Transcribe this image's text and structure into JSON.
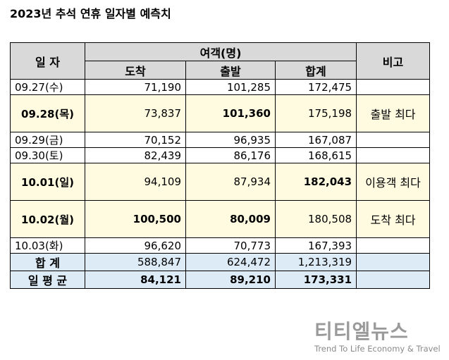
{
  "title": "2023년 추석 연휴 일자별 예측치",
  "headers": {
    "date": "일 자",
    "group": "여객(명)",
    "arrival": "도착",
    "departure": "출발",
    "total": "합계",
    "note": "비고"
  },
  "rows": [
    {
      "date": "09.27(수)",
      "arrival": "71,190",
      "departure": "101,285",
      "total": "172,475",
      "note": ""
    },
    {
      "date": "09.28(목)",
      "arrival": "73,837",
      "departure": "101,360",
      "total": "175,198",
      "note": "출발 최다"
    },
    {
      "date": "09.29(금)",
      "arrival": "70,152",
      "departure": "96,935",
      "total": "167,087",
      "note": ""
    },
    {
      "date": "09.30(토)",
      "arrival": "82,439",
      "departure": "86,176",
      "total": "168,615",
      "note": ""
    },
    {
      "date": "10.01(일)",
      "arrival": "94,109",
      "departure": "87,934",
      "total": "182,043",
      "note": "이용객 최다"
    },
    {
      "date": "10.02(월)",
      "arrival": "100,500",
      "departure": "80,009",
      "total": "180,508",
      "note": "도착 최다"
    },
    {
      "date": "10.03(화)",
      "arrival": "96,620",
      "departure": "70,773",
      "total": "167,393",
      "note": ""
    }
  ],
  "sum": {
    "label": "합 계",
    "arrival": "588,847",
    "departure": "624,472",
    "total": "1,213,319"
  },
  "avg": {
    "label": "일 평 균",
    "arrival": "84,121",
    "departure": "89,210",
    "total": "173,331"
  },
  "logo": {
    "main": "티티엘뉴스",
    "sub": "Trend To Life Economy & Travel"
  }
}
